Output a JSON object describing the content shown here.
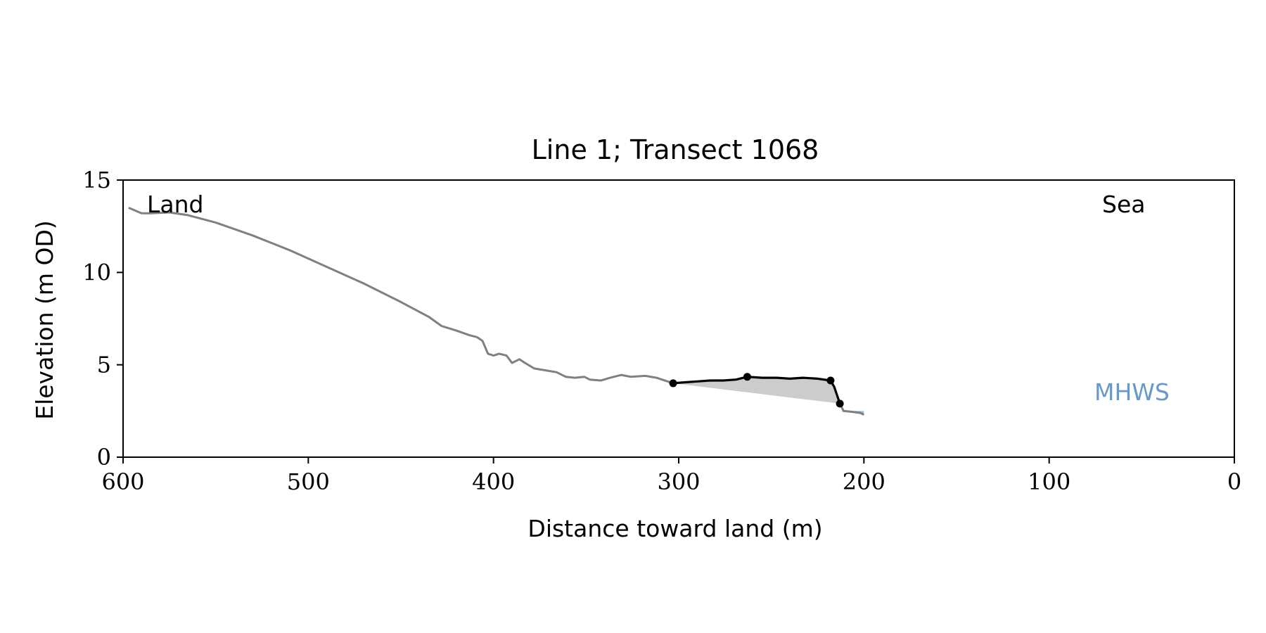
{
  "chart_data": {
    "type": "line",
    "title": "Line 1; Transect 1068",
    "xlabel": "Distance toward land (m)",
    "ylabel": "Elevation (m OD)",
    "xlim": [
      600,
      0
    ],
    "ylim": [
      0,
      15
    ],
    "xticks": [
      600,
      500,
      400,
      300,
      200,
      100,
      0
    ],
    "yticks": [
      0,
      5,
      10,
      15
    ],
    "grid": false,
    "annotations": {
      "land": "Land",
      "sea": "Sea",
      "mhws_label": "MHWS"
    },
    "colors": {
      "profile": "#808080",
      "feature": "#000000",
      "fill": "#cccccc",
      "mhws": "#6699cc",
      "water": "#8fc1f0"
    },
    "mhws_level": 2.5,
    "profile": [
      [
        597,
        13.5
      ],
      [
        590,
        13.2
      ],
      [
        585,
        13.2
      ],
      [
        575,
        13.25
      ],
      [
        565,
        13.1
      ],
      [
        550,
        12.7
      ],
      [
        530,
        12.0
      ],
      [
        510,
        11.2
      ],
      [
        490,
        10.3
      ],
      [
        470,
        9.4
      ],
      [
        450,
        8.4
      ],
      [
        435,
        7.6
      ],
      [
        428,
        7.1
      ],
      [
        420,
        6.85
      ],
      [
        413,
        6.6
      ],
      [
        409,
        6.5
      ],
      [
        406,
        6.3
      ],
      [
        403,
        5.6
      ],
      [
        400,
        5.5
      ],
      [
        397,
        5.6
      ],
      [
        393,
        5.5
      ],
      [
        390,
        5.1
      ],
      [
        386,
        5.3
      ],
      [
        383,
        5.1
      ],
      [
        378,
        4.8
      ],
      [
        372,
        4.7
      ],
      [
        366,
        4.6
      ],
      [
        361,
        4.35
      ],
      [
        356,
        4.3
      ],
      [
        351,
        4.35
      ],
      [
        348,
        4.2
      ],
      [
        342,
        4.15
      ],
      [
        337,
        4.3
      ],
      [
        331,
        4.45
      ],
      [
        326,
        4.35
      ],
      [
        318,
        4.4
      ],
      [
        312,
        4.3
      ],
      [
        306,
        4.1
      ],
      [
        303,
        4.0
      ]
    ],
    "feature": [
      [
        303,
        4.0
      ],
      [
        297,
        4.05
      ],
      [
        290,
        4.1
      ],
      [
        283,
        4.15
      ],
      [
        276,
        4.15
      ],
      [
        269,
        4.2
      ],
      [
        263,
        4.35
      ],
      [
        255,
        4.3
      ],
      [
        247,
        4.3
      ],
      [
        240,
        4.25
      ],
      [
        233,
        4.3
      ],
      [
        225,
        4.25
      ],
      [
        218,
        4.15
      ],
      [
        216,
        3.8
      ],
      [
        213,
        2.9
      ]
    ],
    "feature_points": [
      [
        303,
        4.0
      ],
      [
        263,
        4.35
      ],
      [
        218,
        4.15
      ],
      [
        213,
        2.9
      ]
    ],
    "baseline": [
      [
        303,
        4.0
      ],
      [
        213,
        2.9
      ]
    ],
    "seaward_profile": [
      [
        213,
        2.9
      ],
      [
        211,
        2.5
      ],
      [
        206,
        2.45
      ],
      [
        202,
        2.4
      ],
      [
        200,
        2.3
      ]
    ]
  }
}
